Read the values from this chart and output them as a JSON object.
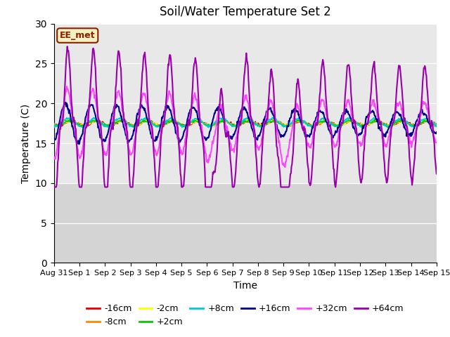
{
  "title": "Soil/Water Temperature Set 2",
  "xlabel": "Time",
  "ylabel": "Temperature (C)",
  "ylim": [
    0,
    30
  ],
  "yticks": [
    0,
    5,
    10,
    15,
    20,
    25,
    30
  ],
  "xtick_labels": [
    "Aug 31",
    "Sep 1",
    "Sep 2",
    "Sep 3",
    "Sep 4",
    "Sep 5",
    "Sep 6",
    "Sep 7",
    "Sep 8",
    "Sep 9",
    "Sep 10",
    "Sep 11",
    "Sep 12",
    "Sep 13",
    "Sep 14",
    "Sep 15"
  ],
  "plot_bg": "#e8e8e8",
  "below_10_bg": "#d4d4d4",
  "annotation_text": "EE_met",
  "annotation_bg": "#f5f0c0",
  "annotation_border": "#8b2000",
  "series": {
    "neg16cm": {
      "color": "#dd0000",
      "label": "-16cm",
      "lw": 1.2
    },
    "neg8cm": {
      "color": "#ff8800",
      "label": "-8cm",
      "lw": 1.2
    },
    "neg2cm": {
      "color": "#ffff00",
      "label": "-2cm",
      "lw": 1.2
    },
    "pos2cm": {
      "color": "#00cc00",
      "label": "+2cm",
      "lw": 1.2
    },
    "pos8cm": {
      "color": "#00cccc",
      "label": "+8cm",
      "lw": 1.2
    },
    "pos16cm": {
      "color": "#000088",
      "label": "+16cm",
      "lw": 1.5
    },
    "pos32cm": {
      "color": "#ff44ff",
      "label": "+32cm",
      "lw": 1.5
    },
    "pos64cm": {
      "color": "#9900aa",
      "label": "+64cm",
      "lw": 1.5
    }
  },
  "base_temp": 17.5
}
